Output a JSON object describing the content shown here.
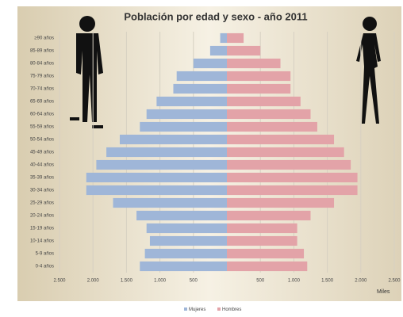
{
  "chart_data": {
    "type": "pyramid",
    "title": "Población por edad y sexo - año 2011",
    "categories": [
      "0-4 años",
      "5-9 años",
      "10-14 años",
      "15-19 años",
      "20-24 años",
      "25-29 años",
      "30-34 años",
      "35-39 años",
      "40-44 años",
      "45-49 años",
      "50-54 años",
      "55-59 años",
      "60-64 años",
      "65-69 años",
      "70-74 años",
      "75-79 años",
      "80-84 años",
      "85-89 años",
      "≥90 años"
    ],
    "series": [
      {
        "name": "Mujeres",
        "color": "#9fb6d8",
        "values": [
          -1300,
          -1225,
          -1150,
          -1200,
          -1350,
          -1700,
          -2100,
          -2100,
          -1950,
          -1800,
          -1600,
          -1300,
          -1200,
          -1050,
          -800,
          -750,
          -500,
          -250,
          -100
        ]
      },
      {
        "name": "Hombres",
        "color": "#e3a3a8",
        "values": [
          1200,
          1150,
          1050,
          1050,
          1250,
          1600,
          1950,
          1950,
          1850,
          1750,
          1600,
          1350,
          1250,
          1100,
          950,
          950,
          800,
          500,
          250
        ]
      }
    ],
    "xlim": [
      -2500,
      2500
    ],
    "xticks": [
      {
        "value": -2500,
        "label": "2.500"
      },
      {
        "value": -2000,
        "label": "2.000"
      },
      {
        "value": -1500,
        "label": "1.500"
      },
      {
        "value": -1000,
        "label": "1.000"
      },
      {
        "value": -500,
        "label": "500"
      },
      {
        "value": 500,
        "label": "500"
      },
      {
        "value": 1000,
        "label": "1.000"
      },
      {
        "value": 1500,
        "label": "1.500"
      },
      {
        "value": 2000,
        "label": "2.000"
      },
      {
        "value": 2500,
        "label": "2.500"
      }
    ],
    "x_label": "Miles",
    "grid": true,
    "legend": "bottom"
  }
}
